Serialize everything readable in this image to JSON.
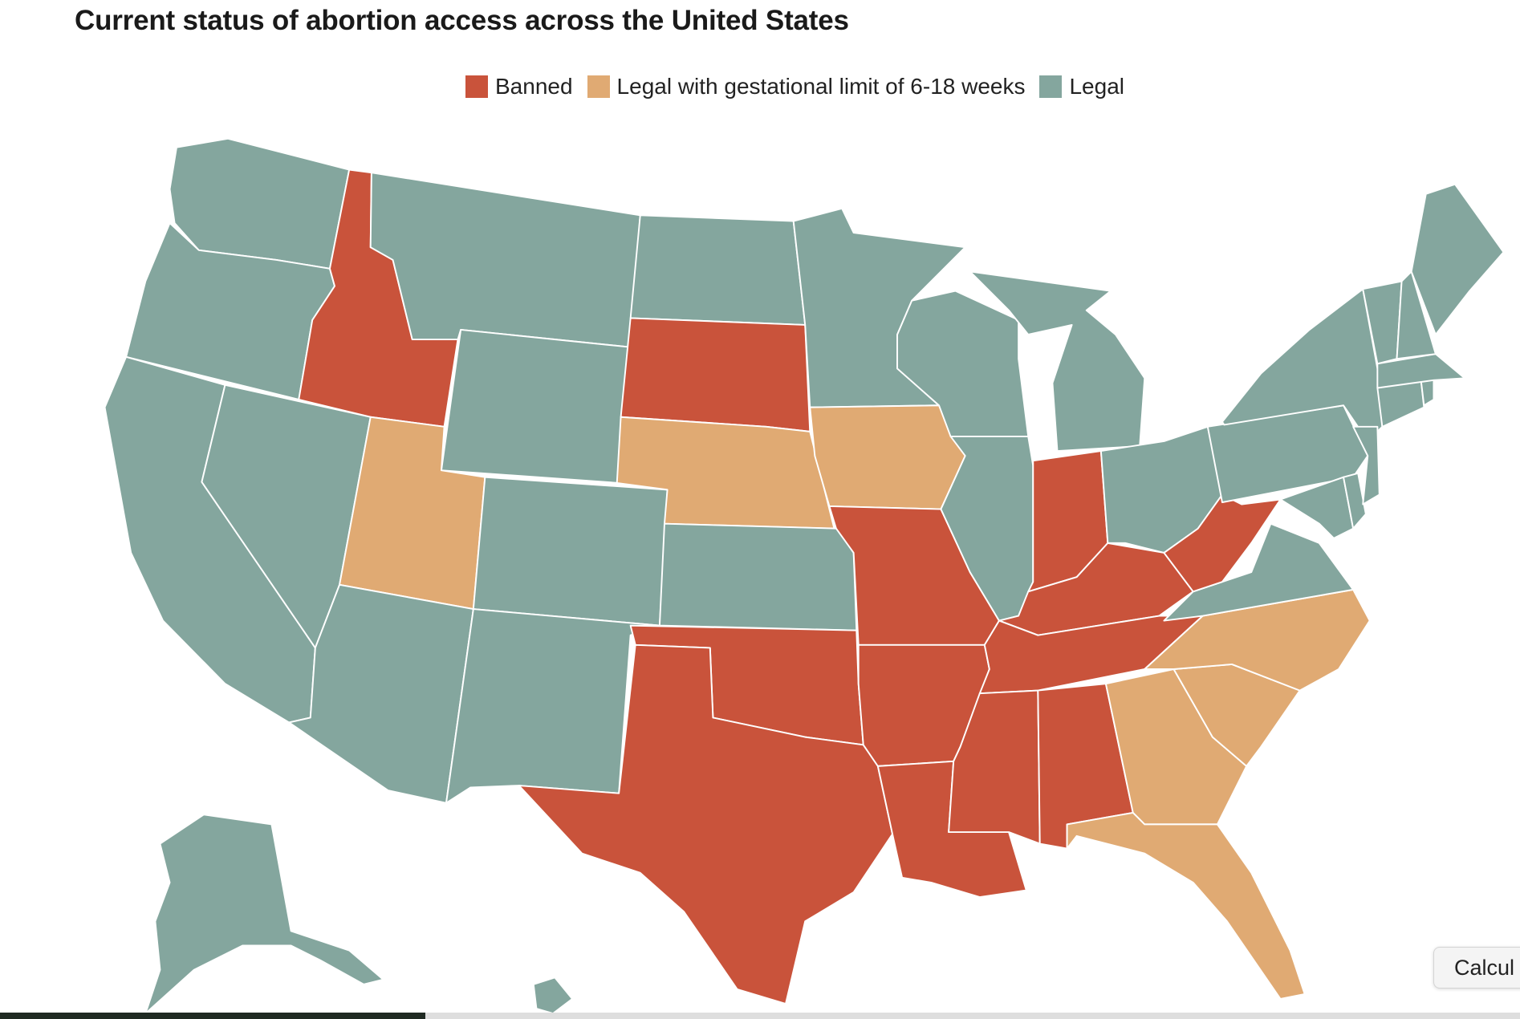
{
  "title": "Current status of abortion access across the United States",
  "legend": [
    {
      "label": "Banned",
      "color": "#c9533b",
      "icon": "banned-swatch"
    },
    {
      "label": "Legal with gestational limit of 6-18 weeks",
      "color": "#e0aa73",
      "icon": "limited-swatch"
    },
    {
      "label": "Legal",
      "color": "#84a69e",
      "icon": "legal-swatch"
    }
  ],
  "categories": {
    "banned": [
      "ID",
      "SD",
      "MO",
      "OK",
      "TX",
      "AR",
      "LA",
      "MS",
      "AL",
      "TN",
      "KY",
      "WV",
      "IN"
    ],
    "limited": [
      "UT",
      "NE",
      "IA",
      "GA",
      "SC",
      "NC",
      "FL"
    ],
    "legal": [
      "WA",
      "OR",
      "CA",
      "NV",
      "AZ",
      "MT",
      "WY",
      "CO",
      "NM",
      "ND",
      "MN",
      "KS",
      "WI",
      "IL",
      "MI",
      "OH",
      "PA",
      "NY",
      "VA",
      "MD",
      "DE",
      "NJ",
      "CT",
      "RI",
      "MA",
      "VT",
      "NH",
      "ME",
      "AK",
      "HI"
    ]
  },
  "popup": {
    "label": "Calcul"
  }
}
